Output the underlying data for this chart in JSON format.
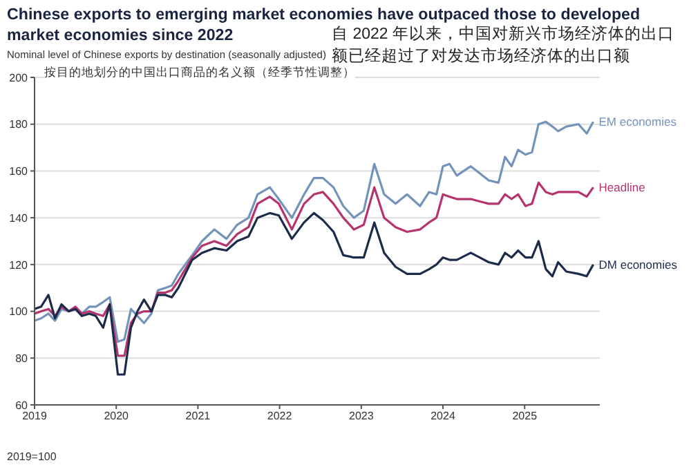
{
  "chart_data": {
    "type": "line",
    "title": "Chinese exports to emerging market economies have outpaced those to developed market economies since 2022",
    "subtitle": "Nominal level of Chinese exports by destination (seasonally adjusted)",
    "annotations": [
      "自 2022 年以来，中国对新兴市场经济体的出口额已经超过了对发达市场经济体的出口额",
      "按目的地划分的中国出口商品的名义额（经季节性调整）",
      "2019=100"
    ],
    "x": [
      2019.0,
      2019.08,
      2019.17,
      2019.25,
      2019.33,
      2019.42,
      2019.5,
      2019.58,
      2019.67,
      2019.75,
      2019.84,
      2019.92,
      2020.02,
      2020.1,
      2020.18,
      2020.26,
      2020.34,
      2020.43,
      2020.51,
      2020.6,
      2020.68,
      2020.76,
      2020.93,
      2021.05,
      2021.2,
      2021.35,
      2021.48,
      2021.62,
      2021.73,
      2021.88,
      2021.99,
      2022.15,
      2022.3,
      2022.42,
      2022.53,
      2022.66,
      2022.78,
      2022.91,
      2023.03,
      2023.16,
      2023.28,
      2023.42,
      2023.56,
      2023.72,
      2023.83,
      2023.92,
      2024.0,
      2024.08,
      2024.17,
      2024.34,
      2024.45,
      2024.56,
      2024.68,
      2024.76,
      2024.84,
      2024.92,
      2025.01,
      2025.09,
      2025.17,
      2025.26,
      2025.34,
      2025.41,
      2025.51,
      2025.66,
      2025.76,
      2025.84
    ],
    "series": [
      {
        "name": "EM economies",
        "color": "#7393bb",
        "values": [
          96,
          97,
          99,
          96,
          101,
          100,
          101,
          99,
          102,
          102,
          104,
          106,
          87,
          88,
          101,
          98,
          95,
          99,
          109,
          110,
          111,
          116,
          124,
          130,
          135,
          131,
          137,
          140,
          150,
          153,
          148,
          140,
          150,
          157,
          157,
          153,
          145,
          140,
          143,
          163,
          150,
          146,
          150,
          145,
          151,
          150,
          162,
          163,
          158,
          162,
          159,
          156,
          155,
          166,
          162,
          169,
          167,
          168,
          180,
          181,
          179,
          177,
          179,
          180,
          176,
          181
        ]
      },
      {
        "name": "Headline",
        "color": "#b5346e",
        "values": [
          99,
          100,
          101,
          98,
          102,
          100,
          102,
          99,
          100,
          99,
          98,
          103,
          81,
          81,
          95,
          99,
          100,
          100,
          108,
          108,
          109,
          113,
          123,
          128,
          130,
          128,
          133,
          136,
          146,
          149,
          146,
          135,
          146,
          150,
          151,
          146,
          140,
          135,
          137,
          153,
          140,
          136,
          134,
          135,
          138,
          140,
          150,
          149,
          148,
          148,
          147,
          146,
          146,
          150,
          148,
          150,
          145,
          146,
          155,
          151,
          150,
          151,
          151,
          151,
          149,
          153
        ]
      },
      {
        "name": "DM economies",
        "color": "#1d2b4a",
        "values": [
          101,
          102,
          107,
          97,
          103,
          100,
          101,
          98,
          99,
          98,
          93,
          103,
          73,
          73,
          93,
          100,
          105,
          100,
          107,
          107,
          106,
          110,
          122,
          125,
          127,
          126,
          130,
          132,
          140,
          142,
          141,
          131,
          138,
          142,
          139,
          134,
          124,
          123,
          123,
          138,
          125,
          119,
          116,
          116,
          118,
          120,
          123,
          122,
          122,
          125,
          123,
          121,
          120,
          125,
          123,
          126,
          123,
          123,
          130,
          118,
          115,
          121,
          117,
          116,
          115,
          120
        ]
      }
    ],
    "xlim": [
      2019,
      2025.92
    ],
    "xticks": [
      2019,
      2020,
      2021,
      2022,
      2023,
      2024,
      2025
    ],
    "ylim": [
      60,
      200
    ],
    "yticks": [
      60,
      80,
      100,
      120,
      140,
      160,
      180,
      200
    ],
    "grid": "y",
    "marker": "none",
    "line_style": "solid"
  }
}
